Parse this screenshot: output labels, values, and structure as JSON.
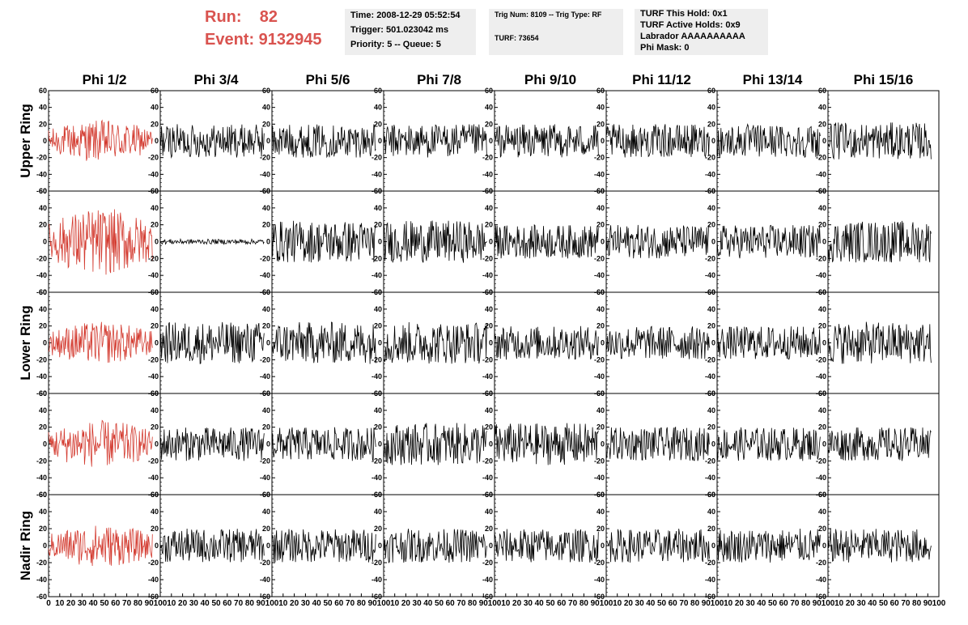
{
  "header": {
    "run": "Run:    82",
    "event": "Event: 9132945",
    "accent_color": "#d9534f"
  },
  "info_boxes": {
    "time": "Time: 2008-12-29 05:52:54",
    "trigger": "Trigger: 501.023042 ms",
    "priority": "Priority: 5 -- Queue: 5",
    "trig_num": "Trig Num: 8109 -- Trig Type: RF",
    "turf": "TURF: 73654",
    "turf_this_hold": "TURF This Hold: 0x1",
    "turf_active_holds": "TURF Active Holds: 0x9",
    "labrador": "Labrador AAAAAAAAAA",
    "phi_mask": "Phi Mask: 0"
  },
  "chart_data": {
    "type": "line",
    "columns": [
      "Phi 1/2",
      "Phi 3/4",
      "Phi 5/6",
      "Phi 7/8",
      "Phi 9/10",
      "Phi 11/12",
      "Phi 13/14",
      "Phi 15/16"
    ],
    "rows": [
      "Upper Ring",
      "",
      "Lower Ring",
      "",
      "Nadir Ring"
    ],
    "xlim": [
      0,
      100
    ],
    "ylim": [
      -60,
      60
    ],
    "y_ticks": [
      -60,
      -40,
      -20,
      0,
      20,
      40,
      60
    ],
    "x_ticks": [
      0,
      10,
      20,
      30,
      40,
      50,
      60,
      70,
      80,
      90,
      100
    ],
    "triggered_column": 0,
    "triggered_color": "#d33a2f",
    "trace_color": "#000000",
    "approx_amplitude": [
      [
        25,
        20,
        20,
        20,
        20,
        20,
        20,
        22
      ],
      [
        40,
        3,
        25,
        25,
        20,
        20,
        20,
        25
      ],
      [
        25,
        25,
        25,
        25,
        20,
        20,
        20,
        25
      ],
      [
        28,
        20,
        20,
        25,
        25,
        20,
        20,
        20
      ],
      [
        25,
        20,
        20,
        20,
        20,
        20,
        20,
        20
      ]
    ]
  }
}
